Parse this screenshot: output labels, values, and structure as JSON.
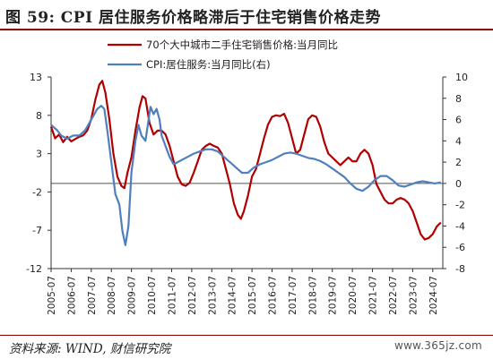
{
  "header": {
    "title": "图 59:  CPI 居住服务价格略滞后于住宅销售价格走势"
  },
  "footer": {
    "source": "资料来源: WIND, 财信研究院",
    "watermark": "www.365jz.com"
  },
  "chart_data": {
    "type": "line",
    "title": "",
    "colors": {
      "red_series": "#b00000",
      "blue_series": "#4f7fbf",
      "axis": "#333333"
    },
    "x_tick_labels": [
      "2005-07",
      "2006-07",
      "2007-07",
      "2008-07",
      "2009-07",
      "2010-07",
      "2011-07",
      "2012-07",
      "2013-07",
      "2014-07",
      "2015-07",
      "2016-07",
      "2017-07",
      "2018-07",
      "2019-07",
      "2020-07",
      "2021-07",
      "2022-07",
      "2023-07",
      "2024-07"
    ],
    "y_left": {
      "ticks": [
        13,
        8,
        3,
        -2,
        -7,
        -12
      ],
      "range": [
        -12,
        13
      ]
    },
    "y_right": {
      "ticks": [
        10,
        8,
        6,
        4,
        2,
        0,
        -2,
        -4,
        -6,
        -8
      ],
      "range": [
        -8,
        10
      ]
    },
    "legend": {
      "position": "top-center"
    },
    "series": [
      {
        "name": "70个大中城市二手住宅销售价格:当月同比",
        "axis": "left",
        "color": "#b00000",
        "points": [
          [
            2005.5,
            6.5
          ],
          [
            2005.7,
            5.0
          ],
          [
            2005.9,
            5.5
          ],
          [
            2006.1,
            4.5
          ],
          [
            2006.3,
            5.2
          ],
          [
            2006.5,
            4.6
          ],
          [
            2006.7,
            4.9
          ],
          [
            2006.9,
            5.2
          ],
          [
            2007.1,
            5.4
          ],
          [
            2007.3,
            6.0
          ],
          [
            2007.5,
            7.5
          ],
          [
            2007.7,
            10.0
          ],
          [
            2007.9,
            12.0
          ],
          [
            2008.05,
            12.5
          ],
          [
            2008.2,
            11.0
          ],
          [
            2008.4,
            7.5
          ],
          [
            2008.6,
            3.0
          ],
          [
            2008.8,
            0.0
          ],
          [
            2009.0,
            -1.2
          ],
          [
            2009.15,
            -1.5
          ],
          [
            2009.3,
            0.5
          ],
          [
            2009.5,
            2.5
          ],
          [
            2009.7,
            6.0
          ],
          [
            2009.9,
            9.0
          ],
          [
            2010.05,
            10.5
          ],
          [
            2010.2,
            10.2
          ],
          [
            2010.4,
            7.0
          ],
          [
            2010.6,
            5.5
          ],
          [
            2010.8,
            6.0
          ],
          [
            2011.0,
            6.0
          ],
          [
            2011.2,
            5.5
          ],
          [
            2011.4,
            4.0
          ],
          [
            2011.6,
            2.0
          ],
          [
            2011.8,
            0.0
          ],
          [
            2012.0,
            -1.0
          ],
          [
            2012.2,
            -1.2
          ],
          [
            2012.4,
            -0.8
          ],
          [
            2012.6,
            0.5
          ],
          [
            2012.8,
            2.0
          ],
          [
            2013.0,
            3.5
          ],
          [
            2013.2,
            4.0
          ],
          [
            2013.4,
            4.3
          ],
          [
            2013.6,
            4.0
          ],
          [
            2013.8,
            3.8
          ],
          [
            2014.0,
            3.0
          ],
          [
            2014.2,
            1.0
          ],
          [
            2014.4,
            -1.0
          ],
          [
            2014.6,
            -3.5
          ],
          [
            2014.8,
            -5.0
          ],
          [
            2014.95,
            -5.5
          ],
          [
            2015.1,
            -4.5
          ],
          [
            2015.3,
            -2.5
          ],
          [
            2015.5,
            0.0
          ],
          [
            2015.7,
            1.0
          ],
          [
            2015.9,
            3.0
          ],
          [
            2016.1,
            5.0
          ],
          [
            2016.3,
            6.8
          ],
          [
            2016.5,
            7.8
          ],
          [
            2016.7,
            8.0
          ],
          [
            2016.9,
            7.9
          ],
          [
            2017.1,
            8.2
          ],
          [
            2017.3,
            7.0
          ],
          [
            2017.5,
            5.0
          ],
          [
            2017.7,
            3.0
          ],
          [
            2017.9,
            3.5
          ],
          [
            2018.1,
            5.5
          ],
          [
            2018.3,
            7.5
          ],
          [
            2018.5,
            8.0
          ],
          [
            2018.7,
            7.8
          ],
          [
            2018.9,
            6.5
          ],
          [
            2019.1,
            4.5
          ],
          [
            2019.3,
            3.0
          ],
          [
            2019.5,
            2.5
          ],
          [
            2019.7,
            2.0
          ],
          [
            2019.9,
            1.5
          ],
          [
            2020.1,
            2.0
          ],
          [
            2020.3,
            2.5
          ],
          [
            2020.5,
            2.0
          ],
          [
            2020.7,
            2.0
          ],
          [
            2020.9,
            3.0
          ],
          [
            2021.1,
            3.5
          ],
          [
            2021.3,
            3.0
          ],
          [
            2021.5,
            1.5
          ],
          [
            2021.7,
            -1.0
          ],
          [
            2021.9,
            -2.0
          ],
          [
            2022.1,
            -3.0
          ],
          [
            2022.3,
            -3.5
          ],
          [
            2022.5,
            -3.5
          ],
          [
            2022.7,
            -3.0
          ],
          [
            2022.9,
            -2.8
          ],
          [
            2023.1,
            -3.0
          ],
          [
            2023.3,
            -3.5
          ],
          [
            2023.5,
            -4.5
          ],
          [
            2023.7,
            -6.0
          ],
          [
            2023.9,
            -7.5
          ],
          [
            2024.1,
            -8.2
          ],
          [
            2024.3,
            -8.0
          ],
          [
            2024.5,
            -7.5
          ],
          [
            2024.7,
            -6.5
          ],
          [
            2024.9,
            -6.0
          ]
        ]
      },
      {
        "name": "CPI:居住服务:当月同比(右)",
        "axis": "right",
        "color": "#4f7fbf",
        "points": [
          [
            2005.5,
            5.5
          ],
          [
            2005.8,
            5.0
          ],
          [
            2006.0,
            4.5
          ],
          [
            2006.3,
            4.2
          ],
          [
            2006.6,
            4.5
          ],
          [
            2006.9,
            4.5
          ],
          [
            2007.2,
            5.0
          ],
          [
            2007.5,
            6.0
          ],
          [
            2007.8,
            7.0
          ],
          [
            2008.0,
            7.3
          ],
          [
            2008.15,
            7.0
          ],
          [
            2008.3,
            5.0
          ],
          [
            2008.5,
            2.0
          ],
          [
            2008.7,
            -1.0
          ],
          [
            2008.9,
            -2.0
          ],
          [
            2009.05,
            -4.5
          ],
          [
            2009.2,
            -5.8
          ],
          [
            2009.35,
            -4.0
          ],
          [
            2009.5,
            1.0
          ],
          [
            2009.7,
            4.0
          ],
          [
            2009.85,
            5.5
          ],
          [
            2010.0,
            4.5
          ],
          [
            2010.2,
            4.0
          ],
          [
            2010.45,
            7.2
          ],
          [
            2010.6,
            6.5
          ],
          [
            2010.75,
            7.0
          ],
          [
            2010.9,
            6.0
          ],
          [
            2011.0,
            4.5
          ],
          [
            2011.2,
            3.5
          ],
          [
            2011.4,
            2.5
          ],
          [
            2011.6,
            1.8
          ],
          [
            2011.8,
            2.0
          ],
          [
            2012.0,
            2.2
          ],
          [
            2012.3,
            2.5
          ],
          [
            2012.6,
            2.8
          ],
          [
            2012.9,
            3.0
          ],
          [
            2013.2,
            3.2
          ],
          [
            2013.5,
            3.2
          ],
          [
            2013.8,
            3.0
          ],
          [
            2014.1,
            2.5
          ],
          [
            2014.4,
            2.0
          ],
          [
            2014.7,
            1.5
          ],
          [
            2015.0,
            1.0
          ],
          [
            2015.3,
            1.0
          ],
          [
            2015.6,
            1.5
          ],
          [
            2015.9,
            1.8
          ],
          [
            2016.2,
            2.0
          ],
          [
            2016.5,
            2.2
          ],
          [
            2016.8,
            2.5
          ],
          [
            2017.1,
            2.8
          ],
          [
            2017.4,
            2.9
          ],
          [
            2017.7,
            2.8
          ],
          [
            2018.0,
            2.6
          ],
          [
            2018.3,
            2.4
          ],
          [
            2018.6,
            2.3
          ],
          [
            2018.9,
            2.1
          ],
          [
            2019.2,
            1.8
          ],
          [
            2019.5,
            1.4
          ],
          [
            2019.8,
            1.0
          ],
          [
            2020.1,
            0.6
          ],
          [
            2020.4,
            0.0
          ],
          [
            2020.7,
            -0.5
          ],
          [
            2021.0,
            -0.7
          ],
          [
            2021.3,
            -0.3
          ],
          [
            2021.6,
            0.3
          ],
          [
            2021.9,
            0.7
          ],
          [
            2022.2,
            0.7
          ],
          [
            2022.5,
            0.3
          ],
          [
            2022.8,
            -0.2
          ],
          [
            2023.1,
            -0.3
          ],
          [
            2023.4,
            -0.1
          ],
          [
            2023.7,
            0.1
          ],
          [
            2024.0,
            0.2
          ],
          [
            2024.3,
            0.1
          ],
          [
            2024.6,
            0.0
          ],
          [
            2024.9,
            0.1
          ]
        ]
      }
    ]
  }
}
